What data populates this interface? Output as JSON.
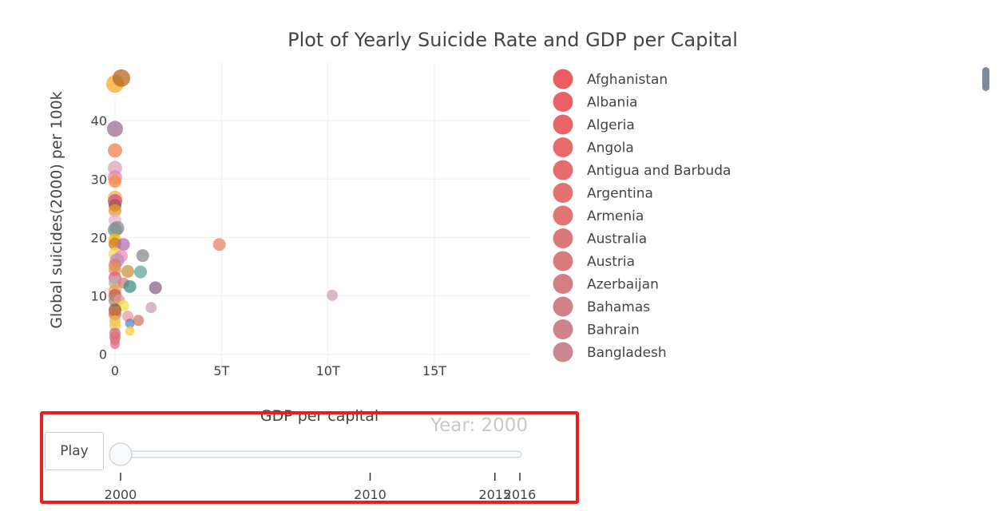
{
  "chart_data": {
    "type": "scatter",
    "title": "Plot of Yearly Suicide Rate and GDP per Capital",
    "xlabel": "GDP per capital",
    "ylabel": "Global suicides(2000) per 100k",
    "xlim": [
      -900000000000,
      19500000000000
    ],
    "ylim": [
      -2.5,
      50
    ],
    "x_ticks": [
      {
        "value": 0,
        "label": "0"
      },
      {
        "value": 5000000000000,
        "label": "5T"
      },
      {
        "value": 10000000000000,
        "label": "10T"
      },
      {
        "value": 15000000000000,
        "label": "15T"
      }
    ],
    "y_ticks": [
      {
        "value": 0,
        "label": "0"
      },
      {
        "value": 10,
        "label": "10"
      },
      {
        "value": 20,
        "label": "20"
      },
      {
        "value": 30,
        "label": "30"
      },
      {
        "value": 40,
        "label": "40"
      }
    ],
    "grid": true,
    "legend_position": "right",
    "legend_entries": [
      {
        "name": "Afghanistan",
        "color": "#ec5d62"
      },
      {
        "name": "Albania",
        "color": "#ea6064"
      },
      {
        "name": "Algeria",
        "color": "#e86666"
      },
      {
        "name": "Angola",
        "color": "#e76b69"
      },
      {
        "name": "Antigua and Barbuda",
        "color": "#e56e6c"
      },
      {
        "name": "Argentina",
        "color": "#e37370"
      },
      {
        "name": "Armenia",
        "color": "#e07574"
      },
      {
        "name": "Australia",
        "color": "#dc7779"
      },
      {
        "name": "Austria",
        "color": "#d87b7d"
      },
      {
        "name": "Azerbaijan",
        "color": "#d47e81"
      },
      {
        "name": "Bahamas",
        "color": "#d08286"
      },
      {
        "name": "Bahrain",
        "color": "#cc858b"
      },
      {
        "name": "Bangladesh",
        "color": "#c98890"
      }
    ],
    "points": [
      {
        "x": 0,
        "y": 46.3,
        "size": 11,
        "color": "#f9a825"
      },
      {
        "x": 300000000000,
        "y": 47.3,
        "size": 11,
        "color": "#b5651d"
      },
      {
        "x": 0,
        "y": 38.6,
        "size": 10,
        "color": "#9e6f8f"
      },
      {
        "x": 0,
        "y": 34.9,
        "size": 9,
        "color": "#ef8354"
      },
      {
        "x": 0,
        "y": 31.9,
        "size": 9,
        "color": "#d9a0c0"
      },
      {
        "x": 0,
        "y": 30.3,
        "size": 9,
        "color": "#e88ab3"
      },
      {
        "x": 0,
        "y": 29.6,
        "size": 8,
        "color": "#f48c3c"
      },
      {
        "x": 0,
        "y": 26.8,
        "size": 9,
        "color": "#f5b041"
      },
      {
        "x": 0,
        "y": 26.2,
        "size": 9,
        "color": "#cc4f9c"
      },
      {
        "x": 0,
        "y": 25.5,
        "size": 8,
        "color": "#a3573d"
      },
      {
        "x": 0,
        "y": 24.6,
        "size": 8,
        "color": "#e39a2c"
      },
      {
        "x": 0,
        "y": 22.9,
        "size": 8,
        "color": "#e3b4d0"
      },
      {
        "x": 0,
        "y": 21.3,
        "size": 9,
        "color": "#5f9e8c"
      },
      {
        "x": 100000000000,
        "y": 21.6,
        "size": 9,
        "color": "#8d8d8d"
      },
      {
        "x": 0,
        "y": 19.6,
        "size": 8,
        "color": "#f2c200"
      },
      {
        "x": 0,
        "y": 18.9,
        "size": 8,
        "color": "#c77a2a"
      },
      {
        "x": 400000000000,
        "y": 18.8,
        "size": 8,
        "color": "#b46db0"
      },
      {
        "x": 4900000000000,
        "y": 18.8,
        "size": 8,
        "color": "#e58366"
      },
      {
        "x": 1300000000000,
        "y": 16.9,
        "size": 8,
        "color": "#8a8a8a"
      },
      {
        "x": 0,
        "y": 17.2,
        "size": 8,
        "color": "#f7d35c"
      },
      {
        "x": 300000000000,
        "y": 16.8,
        "size": 8,
        "color": "#f28fb5"
      },
      {
        "x": 100000000000,
        "y": 16.1,
        "size": 9,
        "color": "#b98fc7"
      },
      {
        "x": 0,
        "y": 15.3,
        "size": 8,
        "color": "#e2786c"
      },
      {
        "x": 0,
        "y": 14.5,
        "size": 8,
        "color": "#d99a4f"
      },
      {
        "x": 600000000000,
        "y": 14.2,
        "size": 8,
        "color": "#c79642"
      },
      {
        "x": 1200000000000,
        "y": 14.1,
        "size": 8,
        "color": "#5fa79b"
      },
      {
        "x": 0,
        "y": 13.1,
        "size": 8,
        "color": "#e55d80"
      },
      {
        "x": 0,
        "y": 12.3,
        "size": 8,
        "color": "#b0b0b0"
      },
      {
        "x": 400000000000,
        "y": 12.2,
        "size": 7,
        "color": "#d77a7a"
      },
      {
        "x": 700000000000,
        "y": 11.6,
        "size": 8,
        "color": "#3f8f8a"
      },
      {
        "x": 1900000000000,
        "y": 11.4,
        "size": 8,
        "color": "#8e6289"
      },
      {
        "x": 0,
        "y": 10.9,
        "size": 8,
        "color": "#f1a04a"
      },
      {
        "x": 0,
        "y": 10.1,
        "size": 8,
        "color": "#c45a5a"
      },
      {
        "x": 10200000000000,
        "y": 10.1,
        "size": 7,
        "color": "#c9a0b8"
      },
      {
        "x": 0,
        "y": 9.2,
        "size": 8,
        "color": "#a78a6b"
      },
      {
        "x": 200000000000,
        "y": 9.3,
        "size": 7,
        "color": "#e89a8a"
      },
      {
        "x": 400000000000,
        "y": 8.3,
        "size": 7,
        "color": "#f2e04a"
      },
      {
        "x": 1700000000000,
        "y": 8.0,
        "size": 7,
        "color": "#c9a0b8"
      },
      {
        "x": 0,
        "y": 7.6,
        "size": 8,
        "color": "#8a5d3b"
      },
      {
        "x": 0,
        "y": 6.9,
        "size": 8,
        "color": "#d16a3a"
      },
      {
        "x": 600000000000,
        "y": 6.5,
        "size": 7,
        "color": "#e79aa8"
      },
      {
        "x": 0,
        "y": 5.7,
        "size": 7,
        "color": "#e8b84a"
      },
      {
        "x": 1100000000000,
        "y": 5.8,
        "size": 7,
        "color": "#d37a6f"
      },
      {
        "x": 700000000000,
        "y": 5.3,
        "size": 6,
        "color": "#5b86c4"
      },
      {
        "x": 0,
        "y": 4.8,
        "size": 7,
        "color": "#f2c94c"
      },
      {
        "x": 700000000000,
        "y": 4.0,
        "size": 6,
        "color": "#f5cd3c"
      },
      {
        "x": 0,
        "y": 3.6,
        "size": 7,
        "color": "#c76a9d"
      },
      {
        "x": 0,
        "y": 2.9,
        "size": 7,
        "color": "#e56b6b"
      },
      {
        "x": 0,
        "y": 2.3,
        "size": 6,
        "color": "#dd6b7d"
      },
      {
        "x": 0,
        "y": 1.7,
        "size": 6,
        "color": "#e6738f"
      }
    ]
  },
  "slider": {
    "current_label": "Year: 2000",
    "play_label": "Play",
    "min": 2000,
    "max": 2016,
    "value": 2000,
    "ticks": [
      2000,
      2010,
      2015,
      2016
    ]
  },
  "colors": {
    "highlight": "#ee1c1c",
    "grid": "#eeeeee",
    "text": "#444444"
  }
}
